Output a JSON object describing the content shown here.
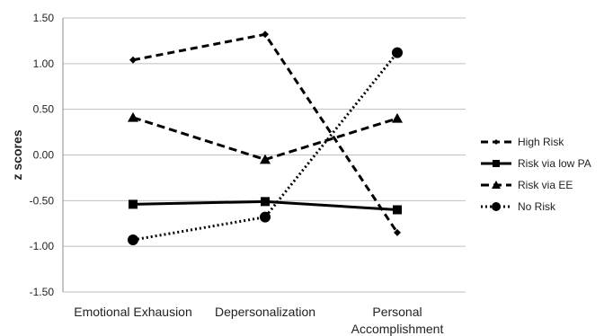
{
  "chart_data": {
    "type": "line",
    "title": "",
    "xlabel": "",
    "ylabel": "z scores",
    "ylim": [
      -1.5,
      1.5
    ],
    "yticks": [
      "1.50",
      "1.00",
      "0.50",
      "0.00",
      "-0.50",
      "-1.00",
      "-1.50"
    ],
    "ytick_values": [
      1.5,
      1.0,
      0.5,
      0.0,
      -0.5,
      -1.0,
      -1.5
    ],
    "categories": [
      "Emotional Exhausion",
      "Depersonalization",
      "Personal Accomplishment"
    ],
    "category_lines": [
      [
        "Emotional Exhausion"
      ],
      [
        "Depersonalization"
      ],
      [
        "Personal",
        "Accomplishment"
      ]
    ],
    "grid": "horizontal",
    "legend_position": "right",
    "series": [
      {
        "name": "High Risk",
        "values": [
          1.04,
          1.32,
          -0.85
        ],
        "marker": "diamond",
        "dash": "8,5",
        "marker_size": 4
      },
      {
        "name": "Risk via low PA",
        "values": [
          -0.54,
          -0.51,
          -0.6
        ],
        "marker": "square",
        "dash": "",
        "marker_size": 5
      },
      {
        "name": "Risk via EE",
        "values": [
          0.41,
          -0.05,
          0.4
        ],
        "marker": "triangle",
        "dash": "9,5",
        "marker_size": 6
      },
      {
        "name": "No Risk",
        "values": [
          -0.93,
          -0.68,
          1.12
        ],
        "marker": "circle",
        "dash": "2,3",
        "marker_size": 6
      }
    ],
    "colors": {
      "line": "#000000",
      "grid": "#bfbfbf",
      "axis": "#8c8c8c",
      "text": "#222222"
    }
  }
}
